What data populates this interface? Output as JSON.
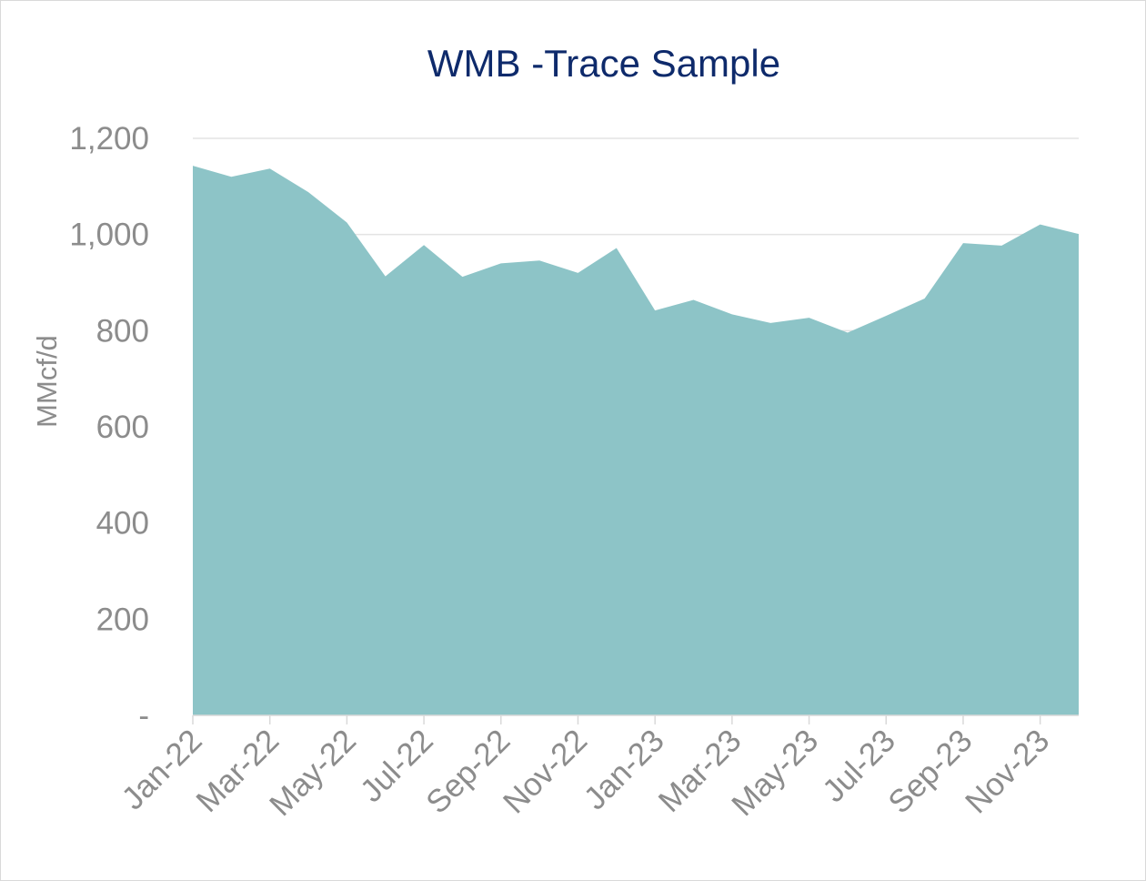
{
  "chart_data": {
    "type": "area",
    "title": "WMB -Trace Sample",
    "xlabel": "",
    "ylabel": "MMcf/d",
    "ylim": [
      0,
      1200
    ],
    "y_ticks": [
      {
        "value": 0,
        "label": "-"
      },
      {
        "value": 200,
        "label": "200"
      },
      {
        "value": 400,
        "label": "400"
      },
      {
        "value": 600,
        "label": "600"
      },
      {
        "value": 800,
        "label": "800"
      },
      {
        "value": 1000,
        "label": "1,000"
      },
      {
        "value": 1200,
        "label": "1,200"
      }
    ],
    "x_tick_labels": [
      "Jan-22",
      "Mar-22",
      "May-22",
      "Jul-22",
      "Sep-22",
      "Nov-22",
      "Jan-23",
      "Mar-23",
      "May-23",
      "Jul-23",
      "Sep-23",
      "Nov-23"
    ],
    "grid": "horizontal",
    "legend": "none",
    "color": "#8dc4c7",
    "series": [
      {
        "x": [
          "Jan-22",
          "Feb-22",
          "Mar-22",
          "Apr-22",
          "May-22",
          "Jun-22",
          "Jul-22",
          "Aug-22",
          "Sep-22",
          "Oct-22",
          "Nov-22",
          "Dec-22",
          "Jan-23",
          "Feb-23",
          "Mar-23",
          "Apr-23",
          "May-23",
          "Jun-23",
          "Jul-23",
          "Aug-23",
          "Sep-23",
          "Oct-23",
          "Nov-23",
          "Dec-23"
        ],
        "values": [
          1143,
          1120,
          1137,
          1088,
          1025,
          913,
          978,
          912,
          940,
          946,
          920,
          972,
          842,
          864,
          834,
          816,
          827,
          796,
          831,
          867,
          982,
          977,
          1021,
          1001
        ]
      }
    ]
  }
}
